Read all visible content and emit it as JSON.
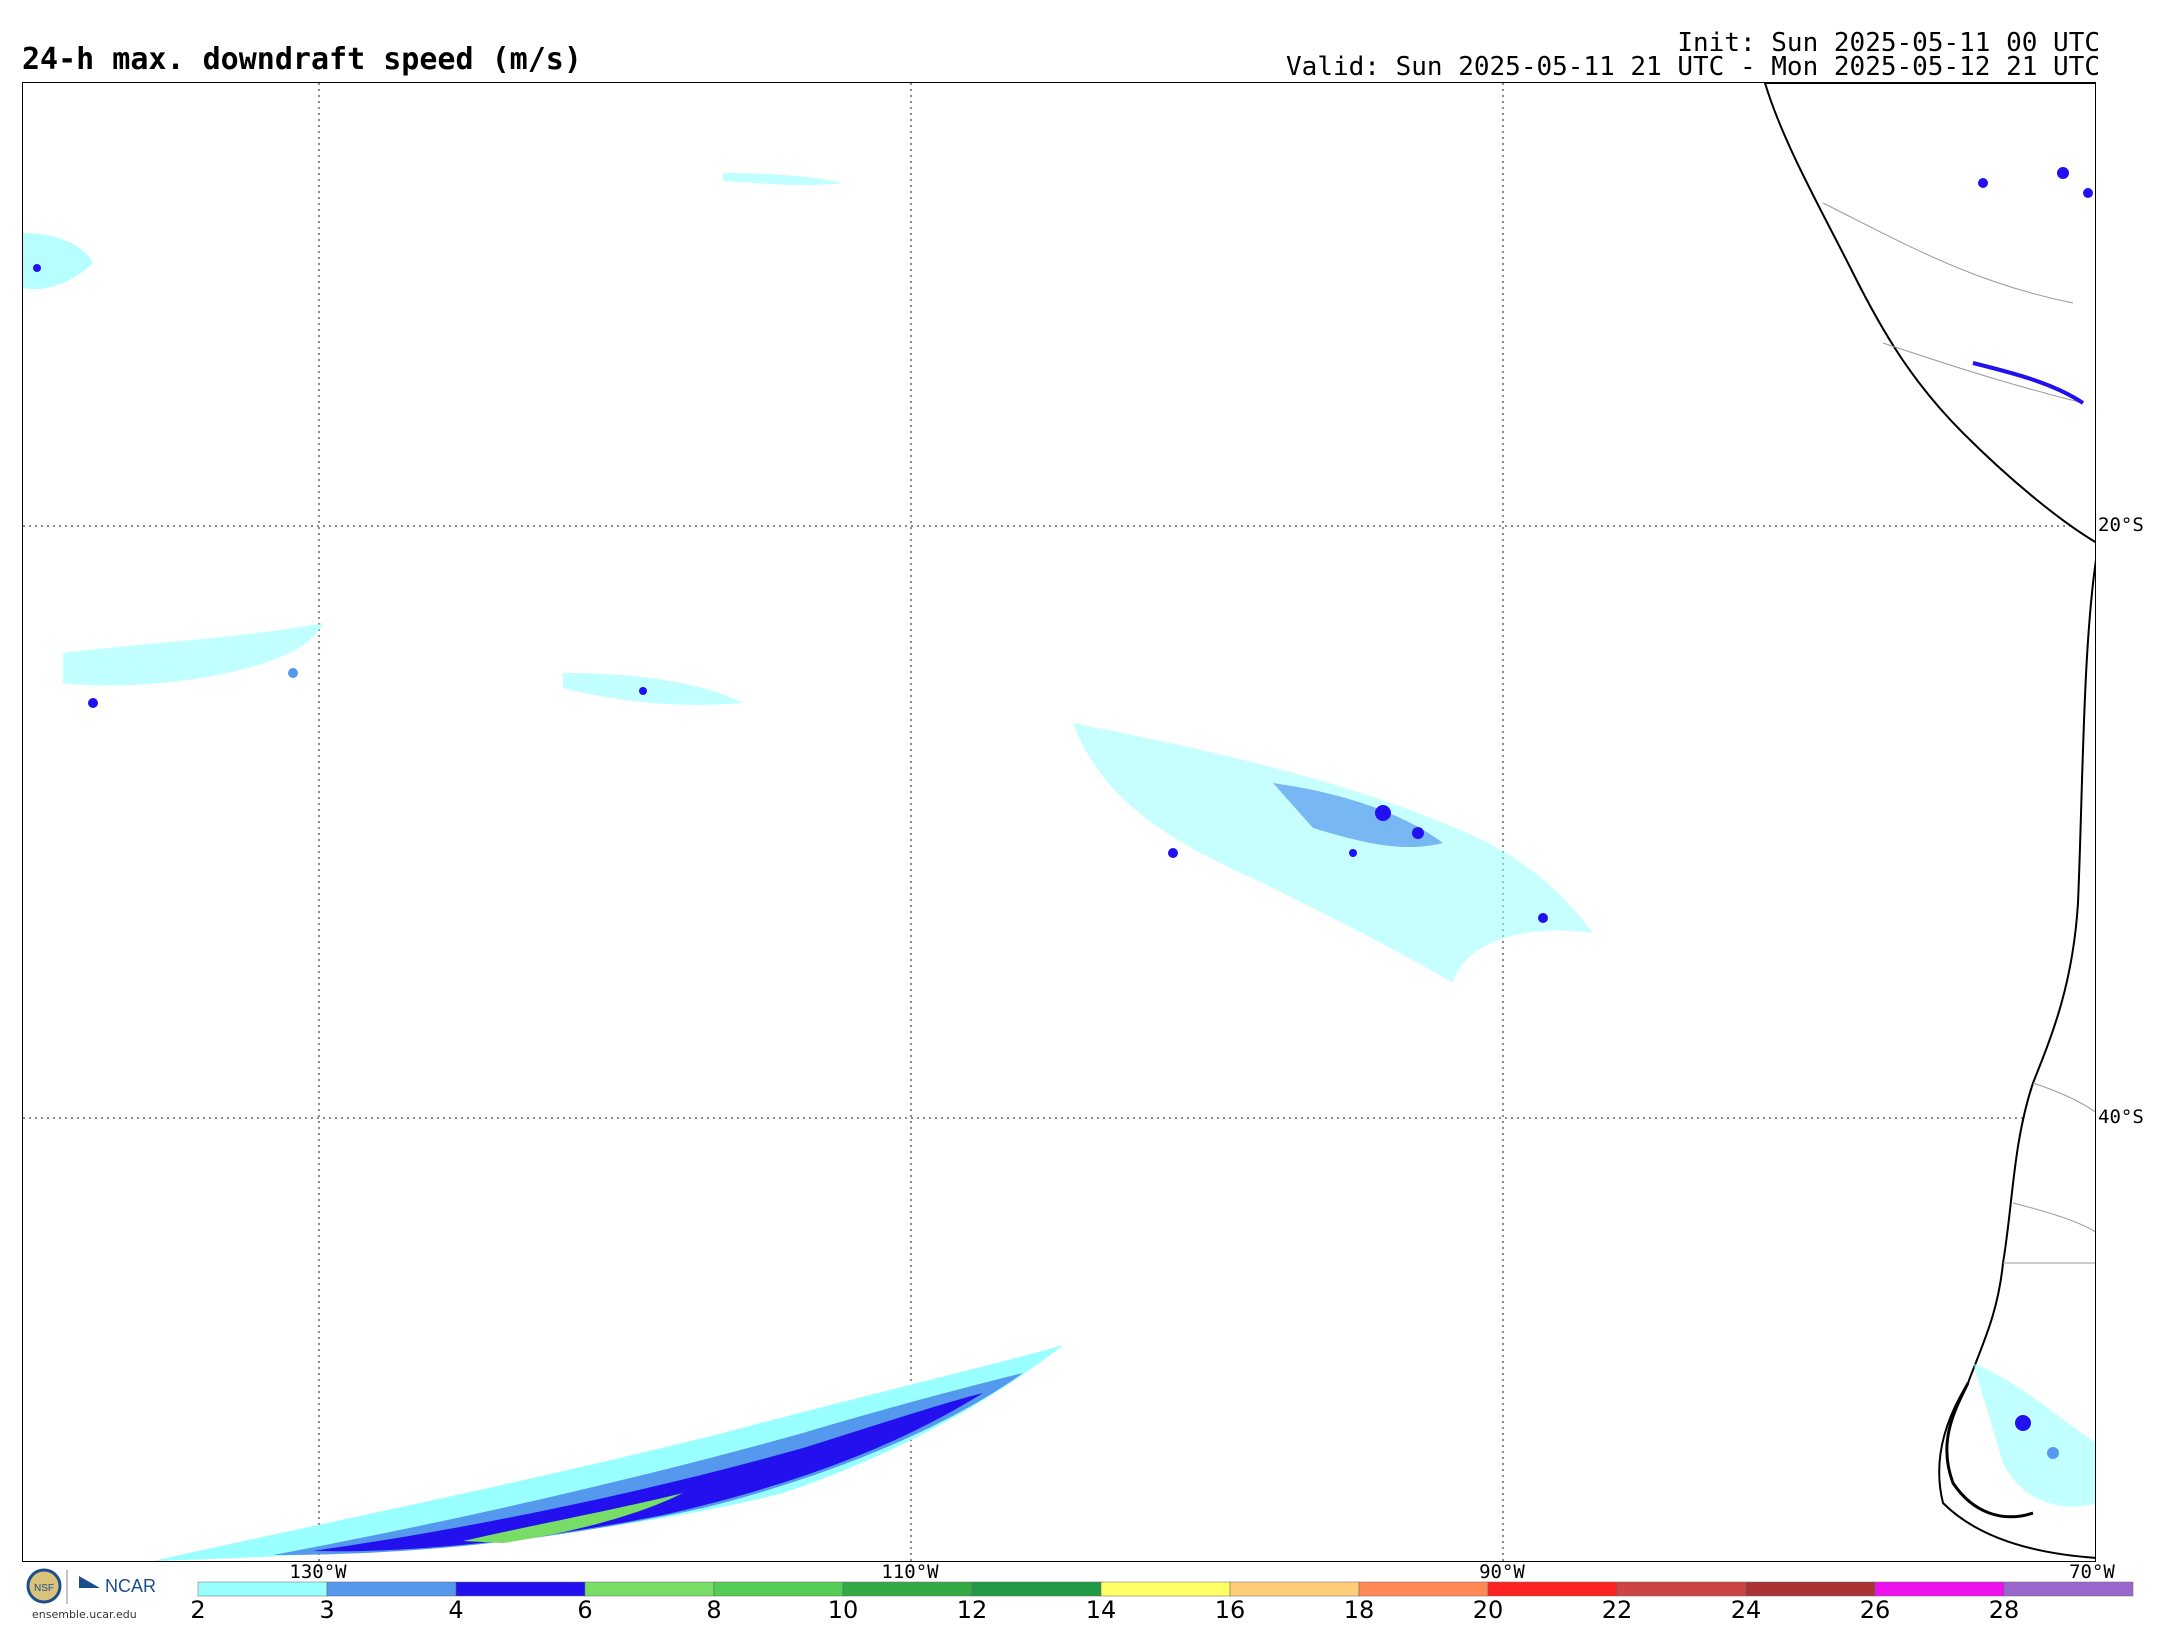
{
  "title": "24-h max. downdraft speed (m/s)",
  "init": "Init: Sun 2025-05-11 00 UTC",
  "valid": "Valid: Sun 2025-05-11 21 UTC - Mon 2025-05-12 21 UTC",
  "map": {
    "lat_labels": [
      "20°S",
      "40°S"
    ],
    "lon_labels": [
      "130°W",
      "110°W",
      "90°W",
      "70°W"
    ],
    "gridlines": "dotted"
  },
  "colorbar": {
    "labels": [
      "2",
      "3",
      "4",
      "6",
      "8",
      "10",
      "12",
      "14",
      "16",
      "18",
      "20",
      "22",
      "24",
      "26",
      "28"
    ],
    "colors": [
      "#99ffff",
      "#5599ee",
      "#2211ee",
      "#77dd66",
      "#55cc55",
      "#33aa44",
      "#229944",
      "#ffff66",
      "#ffcc77",
      "#ff8855",
      "#ff2222",
      "#cc4444",
      "#aa3333",
      "#ee11ee",
      "#9966cc"
    ]
  },
  "footer": {
    "logo_text": "NCAR",
    "url": "ensemble.ucar.edu"
  }
}
